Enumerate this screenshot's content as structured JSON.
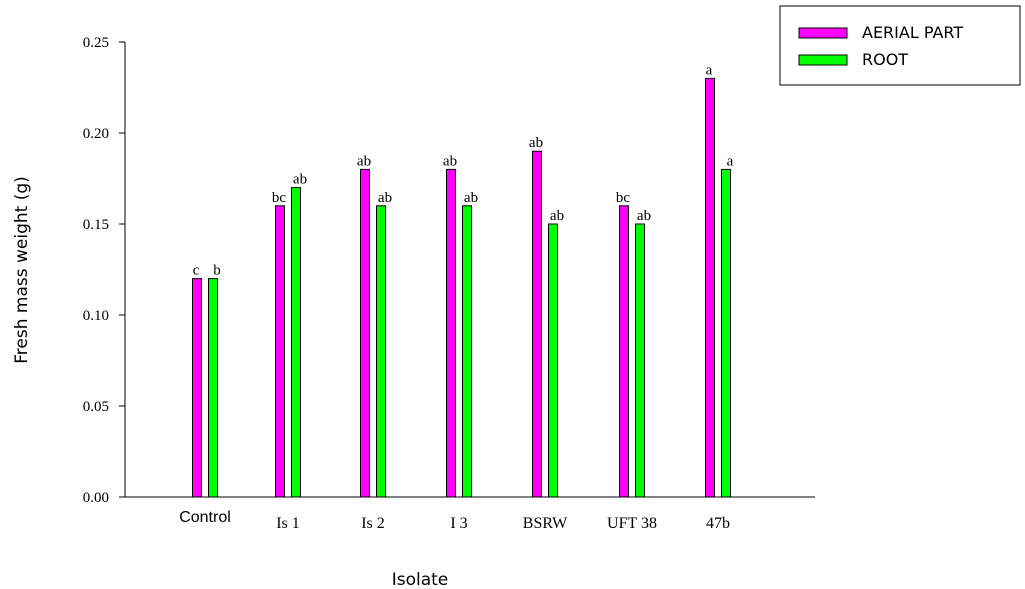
{
  "chart_data": {
    "type": "bar",
    "categories": [
      "Control",
      "Is 1",
      "Is 2",
      "I 3",
      "BSRW",
      "UFT 38",
      "47b"
    ],
    "series": [
      {
        "name": "AERIAL PART",
        "color": "#ff00ff",
        "values": [
          0.12,
          0.16,
          0.18,
          0.18,
          0.19,
          0.16,
          0.23
        ],
        "labels": [
          "c",
          "bc",
          "ab",
          "ab",
          "ab",
          "bc",
          "a"
        ]
      },
      {
        "name": "ROOT",
        "color": "#00ff00",
        "values": [
          0.12,
          0.17,
          0.16,
          0.16,
          0.15,
          0.15,
          0.18
        ],
        "labels": [
          "b",
          "ab",
          "ab",
          "ab",
          "ab",
          "ab",
          "a"
        ]
      }
    ],
    "xlabel": "Isolate",
    "ylabel": "Fresh mass weight (g)",
    "ylim": [
      0,
      0.25
    ],
    "yticks": [
      "0.00",
      "0.05",
      "0.10",
      "0.15",
      "0.20",
      "0.25"
    ],
    "grid": false,
    "legend_position": "top-right"
  }
}
